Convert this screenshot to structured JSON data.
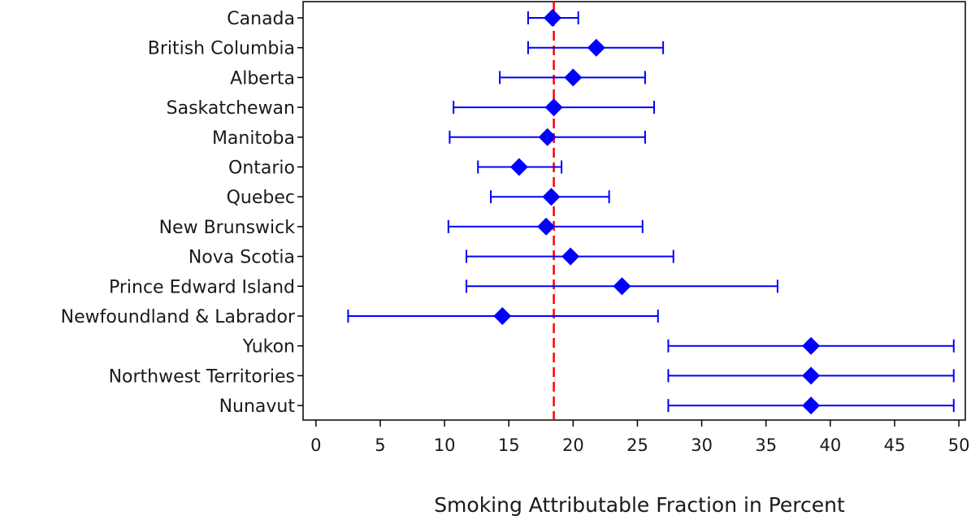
{
  "chart_data": {
    "type": "forest",
    "xlabel": "Smoking Attributable Fraction in Percent",
    "xlim": [
      -1,
      50.5
    ],
    "xticks": [
      0,
      5,
      10,
      15,
      20,
      25,
      30,
      35,
      40,
      45,
      50
    ],
    "reference_line": {
      "x": 18.5,
      "style": "dashed",
      "color": "#ff0000"
    },
    "marker_color": "#0000ff",
    "categories": [
      "Canada",
      "British Columbia",
      "Alberta",
      "Saskatchewan",
      "Manitoba",
      "Ontario",
      "Quebec",
      "New Brunswick",
      "Nova Scotia",
      "Prince Edward Island",
      "Newfoundland & Labrador",
      "Yukon",
      "Northwest Territories",
      "Nunavut"
    ],
    "estimates": [
      18.4,
      21.8,
      20.0,
      18.5,
      18.0,
      15.8,
      18.3,
      17.9,
      19.8,
      23.8,
      14.5,
      38.5,
      38.5,
      38.5
    ],
    "lower": [
      16.5,
      16.5,
      14.3,
      10.7,
      10.4,
      12.6,
      13.6,
      10.3,
      11.7,
      11.7,
      2.5,
      27.4,
      27.4,
      27.4
    ],
    "upper": [
      20.4,
      27.0,
      25.6,
      26.3,
      25.6,
      19.1,
      22.8,
      25.4,
      27.8,
      35.9,
      26.6,
      49.6,
      49.6,
      49.6
    ]
  }
}
